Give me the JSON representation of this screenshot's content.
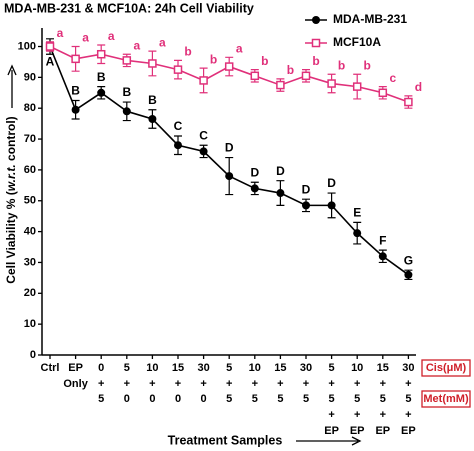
{
  "chart_data": {
    "type": "line",
    "title": "MDA-MB-231 & MCF10A: 24h Cell Viability",
    "y_label": [
      "Cell Viability % (",
      "w.r.t.",
      " control)"
    ],
    "x_label": "Treatment Samples",
    "categories": [
      "Ctrl",
      "EP",
      "0",
      "5",
      "10",
      "15",
      "30",
      "5",
      "10",
      "15",
      "30",
      "5",
      "10",
      "15",
      "30"
    ],
    "category_rows": [
      [
        null,
        "Only",
        "+",
        "+",
        "+",
        "+",
        "+",
        "+",
        "+",
        "+",
        "+",
        "+",
        "+",
        "+",
        "+"
      ],
      [
        null,
        null,
        "5",
        "0",
        "0",
        "0",
        "0",
        "5",
        "5",
        "5",
        "5",
        "5",
        "5",
        "5",
        "5"
      ],
      [
        null,
        null,
        null,
        null,
        null,
        null,
        null,
        null,
        null,
        null,
        null,
        "+",
        "+",
        "+",
        "+"
      ],
      [
        null,
        null,
        null,
        null,
        null,
        null,
        null,
        null,
        null,
        null,
        null,
        "EP",
        "EP",
        "EP",
        "EP"
      ]
    ],
    "row_names": [
      "Cis(μM)",
      "Met(mM)"
    ],
    "ylim": [
      0,
      106
    ],
    "yticks": [
      0,
      10,
      20,
      30,
      40,
      50,
      60,
      70,
      80,
      90,
      100
    ],
    "legend": "upper right",
    "series": [
      {
        "name": "MDA-MB-231",
        "color": "#000000",
        "marker": "circle",
        "values": [
          100,
          79.5,
          85,
          79,
          76.5,
          68,
          66,
          58,
          54,
          52.5,
          48.5,
          48.5,
          39.5,
          32,
          26
        ],
        "errors": [
          2.5,
          3,
          2,
          3,
          3,
          3,
          2,
          6,
          2,
          4,
          2,
          4,
          3.5,
          2,
          1.5
        ],
        "letters": [
          "A",
          "B",
          "B",
          "B",
          "B",
          "C",
          "C",
          "D",
          "D",
          "D",
          "D",
          "D",
          "E",
          "F",
          "G"
        ]
      },
      {
        "name": "MCF10A",
        "color": "#e0307a",
        "marker": "square",
        "values": [
          100,
          96,
          97.5,
          95.5,
          94.5,
          92.5,
          89,
          93.5,
          90.5,
          87.5,
          90.5,
          88,
          87,
          85,
          82
        ],
        "errors": [
          1.5,
          4,
          3,
          2,
          4,
          3,
          4,
          3,
          2,
          2,
          2,
          3,
          4,
          2,
          2
        ],
        "letters": [
          "a",
          "a",
          "a",
          "a",
          "a",
          "b",
          "b",
          "a",
          "b",
          "b",
          "b",
          "b",
          "b",
          "c",
          "d"
        ]
      }
    ]
  }
}
